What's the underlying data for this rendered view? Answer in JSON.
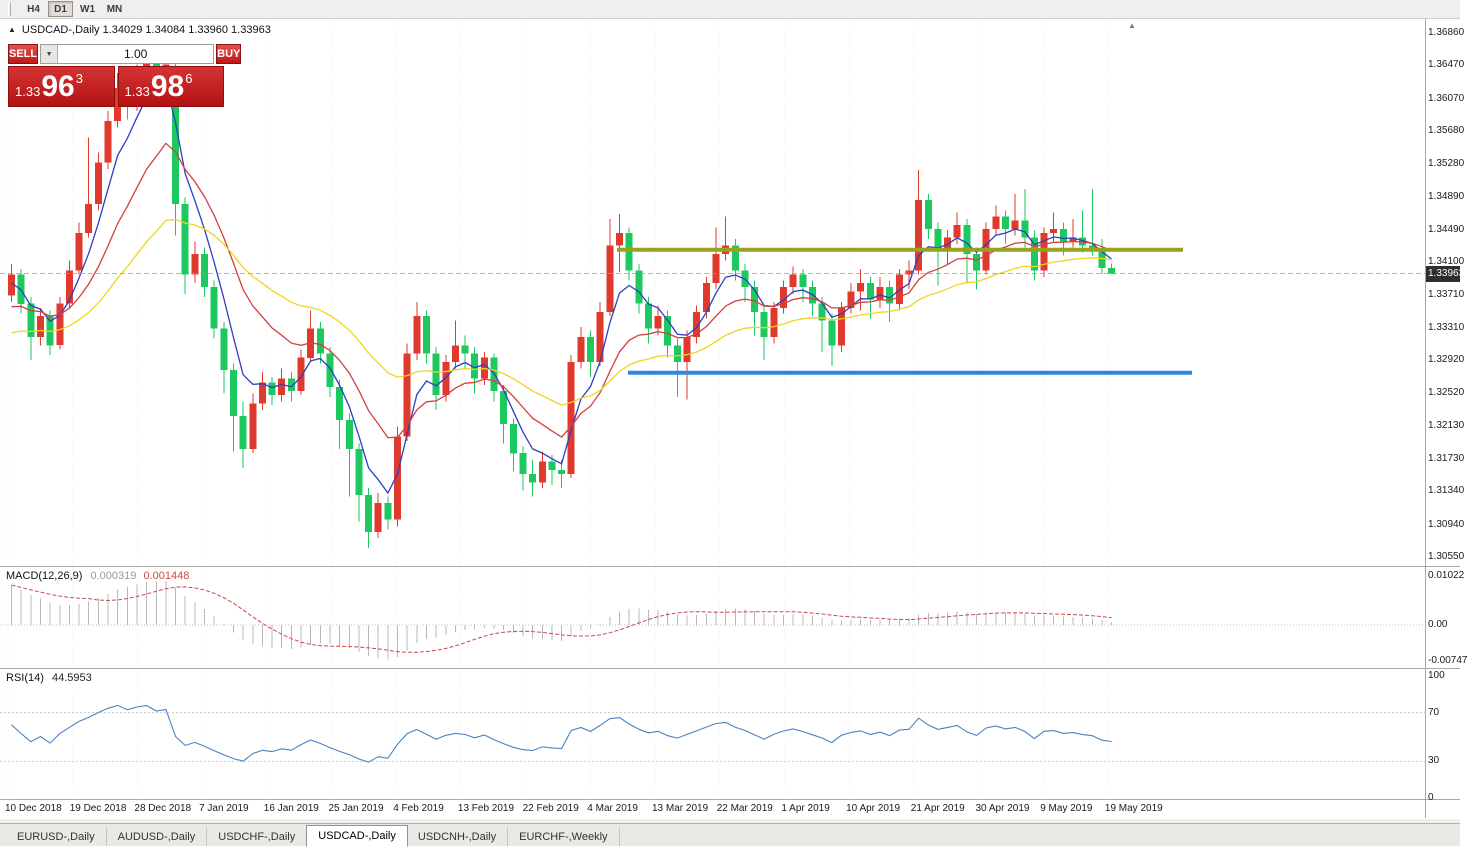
{
  "toolbar": {
    "timeframes": [
      {
        "label": "H4",
        "active": false
      },
      {
        "label": "D1",
        "active": true
      },
      {
        "label": "W1",
        "active": false
      },
      {
        "label": "MN",
        "active": false
      }
    ]
  },
  "icons": {
    "toggle": "▲",
    "dropdown": "▼",
    "shift_marker": "▲"
  },
  "chart_header": {
    "text": "USDCAD-,Daily  1.34029 1.34084 1.33960 1.33963"
  },
  "trade_panel": {
    "sell_label": "SELL",
    "buy_label": "BUY",
    "volume": "1.00",
    "sell_price": {
      "prefix": "1.33",
      "main": "96",
      "sup": "3"
    },
    "buy_price": {
      "prefix": "1.33",
      "main": "98",
      "sup": "6"
    },
    "color": "#c91d1d"
  },
  "price_axis": {
    "labels": [
      "1.36860",
      "1.36470",
      "1.36070",
      "1.35680",
      "1.35280",
      "1.34890",
      "1.34490",
      "1.34100",
      "1.33710",
      "1.33310",
      "1.32920",
      "1.32520",
      "1.32130",
      "1.31730",
      "1.31340",
      "1.30940",
      "1.30550"
    ],
    "current": "1.33963",
    "badge_color": "#2e2e2e"
  },
  "chart_data": {
    "type": "candlestick",
    "title": "USDCAD-,Daily",
    "ylim": [
      1.3044,
      1.3702
    ],
    "colors": {
      "up": "#e0392e",
      "down": "#1dc95e"
    },
    "current_price": 1.33963,
    "ohlc": [
      [
        1.337,
        1.3408,
        1.3362,
        1.3395
      ],
      [
        1.3395,
        1.3402,
        1.3348,
        1.336
      ],
      [
        1.336,
        1.3368,
        1.3292,
        1.332
      ],
      [
        1.332,
        1.3355,
        1.331,
        1.3345
      ],
      [
        1.3345,
        1.3352,
        1.3298,
        1.331
      ],
      [
        1.331,
        1.3368,
        1.3305,
        1.336
      ],
      [
        1.336,
        1.3412,
        1.3355,
        1.34
      ],
      [
        1.34,
        1.3458,
        1.3395,
        1.3445
      ],
      [
        1.3445,
        1.356,
        1.344,
        1.348
      ],
      [
        1.348,
        1.3542,
        1.3472,
        1.353
      ],
      [
        1.353,
        1.3592,
        1.3522,
        1.358
      ],
      [
        1.358,
        1.3638,
        1.3572,
        1.362
      ],
      [
        1.362,
        1.3628,
        1.3582,
        1.36
      ],
      [
        1.36,
        1.3648,
        1.3592,
        1.3635
      ],
      [
        1.3635,
        1.3664,
        1.3625,
        1.3655
      ],
      [
        1.3655,
        1.3662,
        1.3618,
        1.363
      ],
      [
        1.363,
        1.3665,
        1.3622,
        1.3648
      ],
      [
        1.3645,
        1.3652,
        1.3442,
        1.348
      ],
      [
        1.348,
        1.3488,
        1.3372,
        1.3395
      ],
      [
        1.3395,
        1.3435,
        1.3385,
        1.342
      ],
      [
        1.342,
        1.3428,
        1.3368,
        1.338
      ],
      [
        1.338,
        1.3388,
        1.3318,
        1.333
      ],
      [
        1.333,
        1.3338,
        1.3252,
        1.328
      ],
      [
        1.328,
        1.3288,
        1.3182,
        1.3225
      ],
      [
        1.3225,
        1.3242,
        1.3162,
        1.3185
      ],
      [
        1.3185,
        1.3252,
        1.318,
        1.324
      ],
      [
        1.324,
        1.3278,
        1.3232,
        1.3265
      ],
      [
        1.3265,
        1.3272,
        1.3238,
        1.325
      ],
      [
        1.325,
        1.3282,
        1.3242,
        1.327
      ],
      [
        1.327,
        1.3278,
        1.3242,
        1.3255
      ],
      [
        1.3255,
        1.3305,
        1.325,
        1.3295
      ],
      [
        1.3295,
        1.3352,
        1.329,
        1.333
      ],
      [
        1.333,
        1.3338,
        1.3288,
        1.33
      ],
      [
        1.33,
        1.3308,
        1.3248,
        1.326
      ],
      [
        1.326,
        1.3268,
        1.3185,
        1.322
      ],
      [
        1.322,
        1.3228,
        1.3128,
        1.3185
      ],
      [
        1.3185,
        1.3192,
        1.3098,
        1.313
      ],
      [
        1.313,
        1.3138,
        1.3066,
        1.3085
      ],
      [
        1.3085,
        1.3132,
        1.3078,
        1.312
      ],
      [
        1.312,
        1.3128,
        1.3088,
        1.31
      ],
      [
        1.31,
        1.3212,
        1.3092,
        1.32
      ],
      [
        1.32,
        1.3312,
        1.3195,
        1.33
      ],
      [
        1.33,
        1.3362,
        1.3292,
        1.3345
      ],
      [
        1.3345,
        1.3352,
        1.3288,
        1.33
      ],
      [
        1.33,
        1.3308,
        1.3232,
        1.325
      ],
      [
        1.325,
        1.3298,
        1.3242,
        1.329
      ],
      [
        1.329,
        1.334,
        1.3282,
        1.331
      ],
      [
        1.331,
        1.3322,
        1.3282,
        1.33
      ],
      [
        1.33,
        1.3308,
        1.3252,
        1.327
      ],
      [
        1.327,
        1.3302,
        1.3262,
        1.3295
      ],
      [
        1.3295,
        1.33,
        1.3242,
        1.3255
      ],
      [
        1.3255,
        1.3262,
        1.3192,
        1.3215
      ],
      [
        1.3215,
        1.3222,
        1.3158,
        1.318
      ],
      [
        1.318,
        1.3188,
        1.3135,
        1.3155
      ],
      [
        1.3155,
        1.3172,
        1.3128,
        1.3145
      ],
      [
        1.3145,
        1.3182,
        1.3138,
        1.317
      ],
      [
        1.317,
        1.3178,
        1.3142,
        1.316
      ],
      [
        1.316,
        1.3172,
        1.3138,
        1.3155
      ],
      [
        1.3155,
        1.3298,
        1.315,
        1.329
      ],
      [
        1.329,
        1.3332,
        1.3282,
        1.332
      ],
      [
        1.332,
        1.3328,
        1.3272,
        1.329
      ],
      [
        1.329,
        1.3362,
        1.3285,
        1.335
      ],
      [
        1.335,
        1.3462,
        1.3345,
        1.343
      ],
      [
        1.343,
        1.3468,
        1.3398,
        1.3445
      ],
      [
        1.3445,
        1.3452,
        1.3388,
        1.34
      ],
      [
        1.34,
        1.3408,
        1.3348,
        1.336
      ],
      [
        1.336,
        1.3368,
        1.3312,
        1.333
      ],
      [
        1.333,
        1.3358,
        1.3322,
        1.3345
      ],
      [
        1.3345,
        1.3352,
        1.3295,
        1.331
      ],
      [
        1.331,
        1.3318,
        1.3248,
        1.329
      ],
      [
        1.329,
        1.3328,
        1.3245,
        1.332
      ],
      [
        1.332,
        1.3358,
        1.3312,
        1.335
      ],
      [
        1.335,
        1.3392,
        1.3342,
        1.3385
      ],
      [
        1.3385,
        1.3452,
        1.3378,
        1.342
      ],
      [
        1.342,
        1.3465,
        1.3412,
        1.343
      ],
      [
        1.343,
        1.3438,
        1.3388,
        1.34
      ],
      [
        1.34,
        1.3408,
        1.3362,
        1.338
      ],
      [
        1.338,
        1.3388,
        1.3322,
        1.335
      ],
      [
        1.335,
        1.3358,
        1.3292,
        1.332
      ],
      [
        1.332,
        1.3362,
        1.3312,
        1.3355
      ],
      [
        1.3355,
        1.3388,
        1.3348,
        1.338
      ],
      [
        1.338,
        1.3405,
        1.3372,
        1.3395
      ],
      [
        1.3395,
        1.3402,
        1.3362,
        1.338
      ],
      [
        1.338,
        1.3388,
        1.3345,
        1.336
      ],
      [
        1.336,
        1.3368,
        1.3302,
        1.334
      ],
      [
        1.334,
        1.3348,
        1.3285,
        1.331
      ],
      [
        1.331,
        1.3362,
        1.3302,
        1.3355
      ],
      [
        1.3355,
        1.3385,
        1.3348,
        1.3375
      ],
      [
        1.3375,
        1.3402,
        1.3352,
        1.3385
      ],
      [
        1.3385,
        1.3392,
        1.3342,
        1.3365
      ],
      [
        1.3365,
        1.3392,
        1.3355,
        1.338
      ],
      [
        1.338,
        1.3388,
        1.3338,
        1.336
      ],
      [
        1.336,
        1.3402,
        1.3352,
        1.3395
      ],
      [
        1.3395,
        1.3412,
        1.3378,
        1.34
      ],
      [
        1.34,
        1.3521,
        1.3395,
        1.3485
      ],
      [
        1.3485,
        1.3492,
        1.3438,
        1.345
      ],
      [
        1.345,
        1.3458,
        1.3382,
        1.3425
      ],
      [
        1.3425,
        1.3448,
        1.3408,
        1.344
      ],
      [
        1.344,
        1.347,
        1.3432,
        1.3455
      ],
      [
        1.3455,
        1.3462,
        1.3385,
        1.342
      ],
      [
        1.342,
        1.3428,
        1.3377,
        1.34
      ],
      [
        1.34,
        1.3458,
        1.3395,
        1.345
      ],
      [
        1.345,
        1.3478,
        1.3442,
        1.3465
      ],
      [
        1.3465,
        1.3472,
        1.3432,
        1.345
      ],
      [
        1.345,
        1.3492,
        1.3442,
        1.346
      ],
      [
        1.346,
        1.3498,
        1.3428,
        1.344
      ],
      [
        1.344,
        1.3448,
        1.3388,
        1.34
      ],
      [
        1.34,
        1.3452,
        1.3392,
        1.3445
      ],
      [
        1.3445,
        1.347,
        1.3435,
        1.345
      ],
      [
        1.345,
        1.3458,
        1.3418,
        1.3435
      ],
      [
        1.3435,
        1.3462,
        1.3428,
        1.344
      ],
      [
        1.344,
        1.3472,
        1.3422,
        1.343
      ],
      [
        1.343,
        1.3498,
        1.3418,
        1.3425
      ],
      [
        1.3425,
        1.3438,
        1.3396,
        1.3403
      ],
      [
        1.34029,
        1.34084,
        1.3396,
        1.33963
      ]
    ],
    "moving_averages": [
      {
        "name": "ma-fast-blue",
        "period": 5,
        "seed": 1.338,
        "color": "#2c3fc4"
      },
      {
        "name": "ma-mid-red",
        "period": 13,
        "seed": 1.335,
        "color": "#d23f3f"
      },
      {
        "name": "ma-slow-yellow",
        "period": 30,
        "seed": 1.332,
        "color": "#efd51c"
      }
    ],
    "lines": [
      {
        "name": "resistance-line",
        "price": 1.3425,
        "x1": 617,
        "x2": 1183,
        "color": "#97a21e",
        "width": 4
      },
      {
        "name": "support-line",
        "price": 1.3277,
        "x1": 628,
        "x2": 1192,
        "color": "#2e86de",
        "width": 4
      }
    ]
  },
  "macd": {
    "name": "MACD(12,26,9)",
    "main_value": "0.000319",
    "signal_value": "0.001448",
    "fast": 12,
    "slow": 26,
    "signal": 9,
    "seed_fast": 1.34,
    "seed_slow": 1.331,
    "axis": [
      "0.01022",
      "0.00",
      "-0.00747"
    ],
    "hist_color": "#b8b8b8",
    "signal_color": "#cf4848"
  },
  "rsi": {
    "name": "RSI(14)",
    "value": "44.5953",
    "period": 14,
    "axis": [
      "100",
      "70",
      "30",
      "0"
    ],
    "levels": [
      70,
      30
    ],
    "color": "#4a82c4"
  },
  "date_axis": {
    "labels": [
      "10 Dec 2018",
      "19 Dec 2018",
      "28 Dec 2018",
      "7 Jan 2019",
      "16 Jan 2019",
      "25 Jan 2019",
      "4 Feb 2019",
      "13 Feb 2019",
      "22 Feb 2019",
      "4 Mar 2019",
      "13 Mar 2019",
      "22 Mar 2019",
      "1 Apr 2019",
      "10 Apr 2019",
      "21 Apr 2019",
      "30 Apr 2019",
      "9 May 2019",
      "19 May 2019"
    ]
  },
  "tabs": [
    {
      "label": "EURUSD-,Daily",
      "active": false
    },
    {
      "label": "AUDUSD-,Daily",
      "active": false
    },
    {
      "label": "USDCHF-,Daily",
      "active": false
    },
    {
      "label": "USDCAD-,Daily",
      "active": true
    },
    {
      "label": "USDCNH-,Daily",
      "active": false
    },
    {
      "label": "EURCHF-,Weekly",
      "active": false
    }
  ]
}
